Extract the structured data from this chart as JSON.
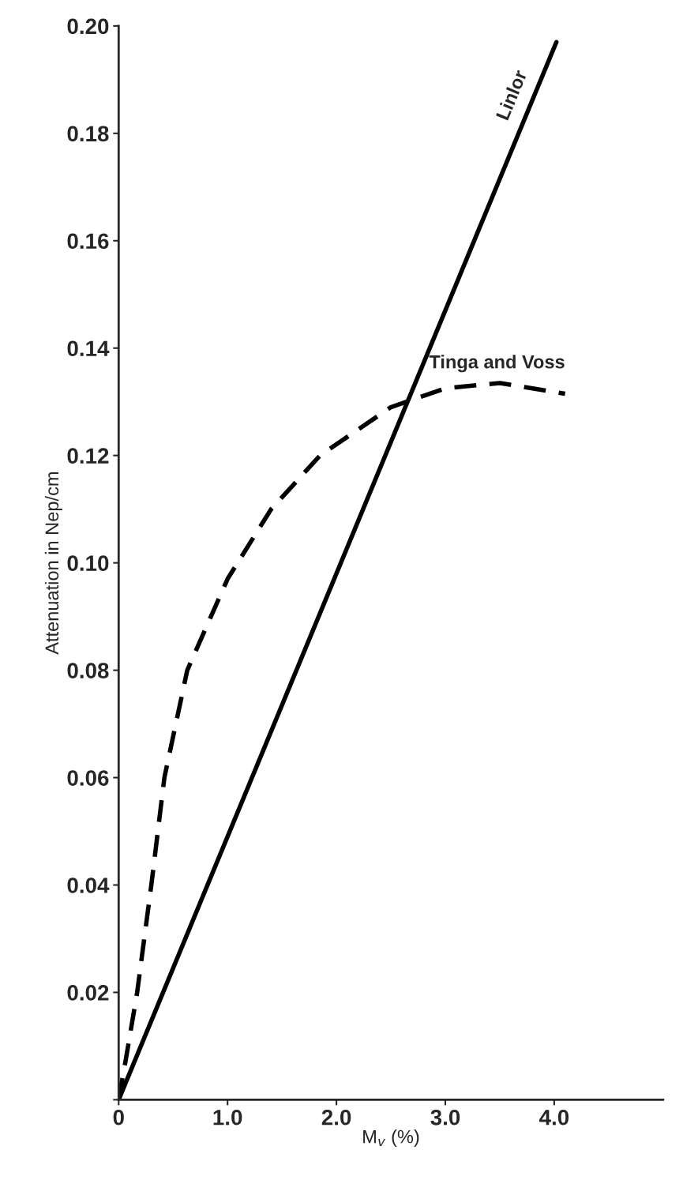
{
  "chart_data": {
    "type": "line",
    "xlabel": "M$_{v}$ (%)",
    "ylabel": "Attenuation in Nep/cm",
    "xlim": [
      0,
      5.0
    ],
    "xticks": [
      0,
      {
        "value": 1,
        "label": "1.0"
      },
      {
        "value": 2,
        "label": "2.0"
      },
      {
        "value": 3,
        "label": "3.0"
      },
      {
        "value": 4,
        "label": "4.0"
      }
    ],
    "ylim": [
      0,
      0.2
    ],
    "yticks": [
      {
        "value": 0,
        "label": null
      },
      {
        "value": 0.02,
        "label": "0.02"
      },
      {
        "value": 0.04,
        "label": "0.04"
      },
      {
        "value": 0.06,
        "label": "0.06"
      },
      {
        "value": 0.08,
        "label": "0.08"
      },
      {
        "value": 0.1,
        "label": "0.10"
      },
      {
        "value": 0.12,
        "label": "0.12"
      },
      {
        "value": 0.14,
        "label": "0.14"
      },
      {
        "value": 0.16,
        "label": "0.16"
      },
      {
        "value": 0.18,
        "label": "0.18"
      },
      {
        "value": 0.2,
        "label": "0.20"
      }
    ],
    "grid": false,
    "legend": false,
    "series": [
      {
        "name": "Linlor",
        "color": "#000000",
        "line_style": "solid",
        "x": [
          0,
          4.02
        ],
        "values": [
          0,
          0.197
        ]
      },
      {
        "name": "Tinga and Voss",
        "color": "#000000",
        "line_style": "dashed",
        "x": [
          0,
          0.07,
          0.17,
          0.3,
          0.42,
          0.63,
          1.0,
          1.4,
          1.85,
          2.5,
          3.0,
          3.5,
          4.1
        ],
        "values": [
          0,
          0.008,
          0.02,
          0.04,
          0.06,
          0.08,
          0.097,
          0.11,
          0.12,
          0.129,
          0.1325,
          0.1335,
          0.1315
        ]
      }
    ]
  }
}
